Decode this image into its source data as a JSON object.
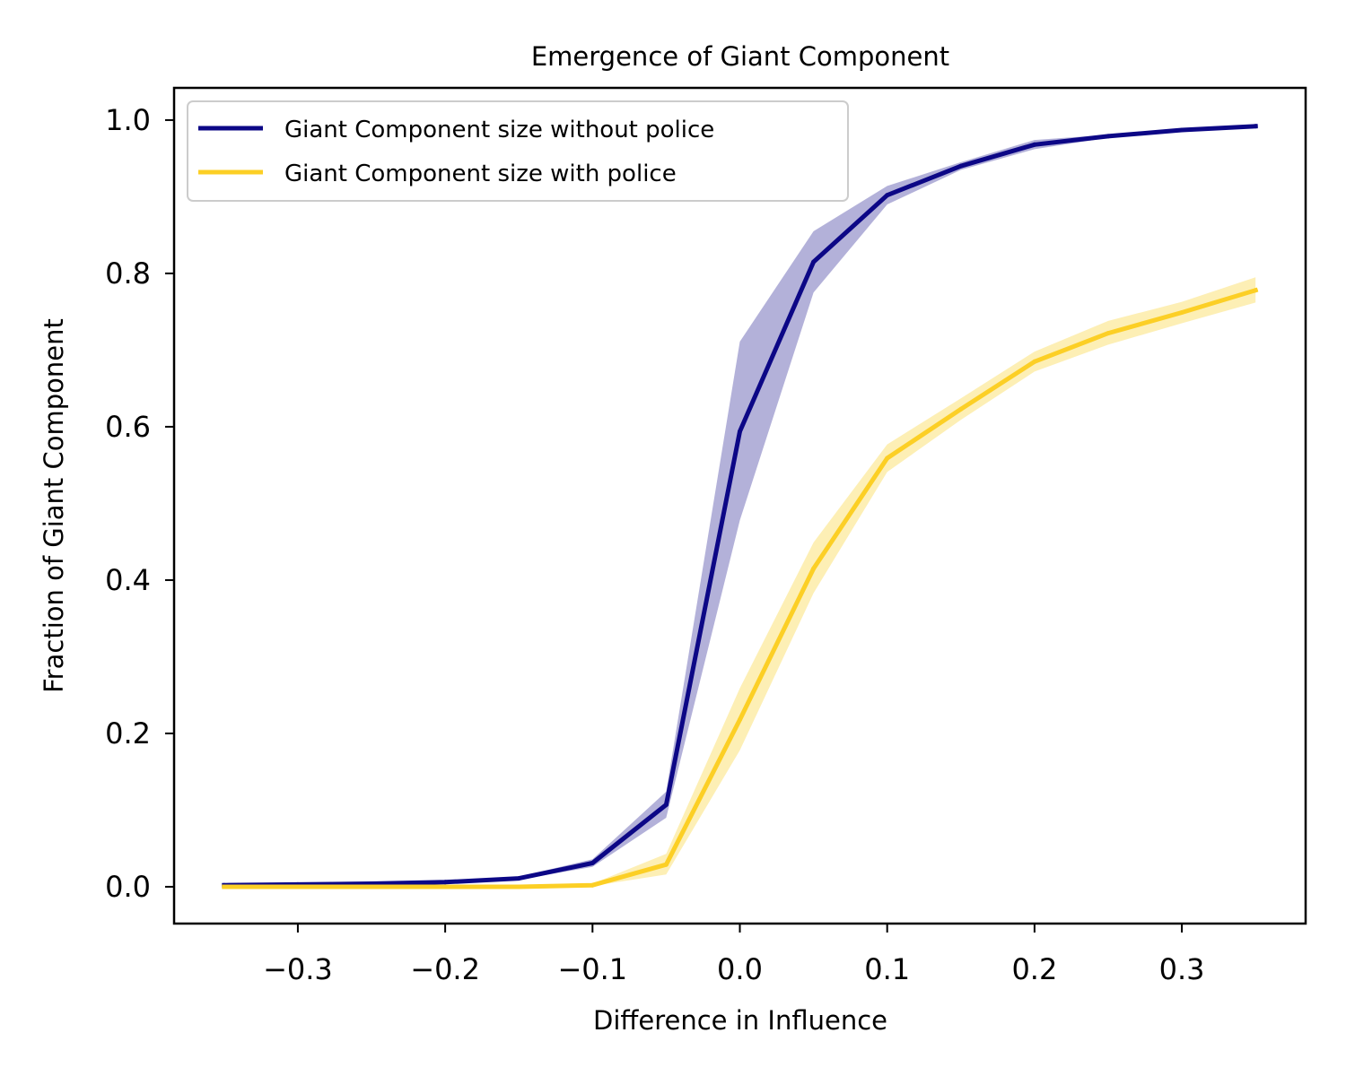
{
  "chart_data": {
    "type": "line",
    "title": "Emergence of Giant Component",
    "xlabel": "Difference in Influence",
    "ylabel": "Fraction of Giant Component",
    "xlim": [
      -0.384,
      0.384
    ],
    "ylim": [
      -0.048,
      1.042
    ],
    "xticks": [
      -0.3,
      -0.2,
      -0.1,
      0.0,
      0.1,
      0.2,
      0.3
    ],
    "xtick_labels": [
      "−0.3",
      "−0.2",
      "−0.1",
      "0.0",
      "0.1",
      "0.2",
      "0.3"
    ],
    "yticks": [
      0.0,
      0.2,
      0.4,
      0.6,
      0.8,
      1.0
    ],
    "ytick_labels": [
      "0.0",
      "0.2",
      "0.4",
      "0.6",
      "0.8",
      "1.0"
    ],
    "grid": false,
    "legend_position": "upper left",
    "x": [
      -0.35,
      -0.3,
      -0.25,
      -0.2,
      -0.15,
      -0.1,
      -0.05,
      0.0,
      0.05,
      0.1,
      0.15,
      0.2,
      0.25,
      0.3,
      0.35
    ],
    "series": [
      {
        "name": "Giant Component size without police",
        "color": "#0c0786",
        "band_color": "#b3b1d9",
        "values": [
          0.002,
          0.003,
          0.004,
          0.006,
          0.011,
          0.031,
          0.107,
          0.594,
          0.815,
          0.902,
          0.94,
          0.968,
          0.979,
          0.987,
          0.992
        ],
        "lower": [
          0.001,
          0.002,
          0.003,
          0.005,
          0.009,
          0.026,
          0.09,
          0.478,
          0.775,
          0.89,
          0.935,
          0.962,
          0.977,
          0.986,
          0.991
        ],
        "upper": [
          0.003,
          0.004,
          0.005,
          0.007,
          0.013,
          0.036,
          0.124,
          0.711,
          0.855,
          0.914,
          0.945,
          0.974,
          0.981,
          0.988,
          0.993
        ]
      },
      {
        "name": "Giant Component size with police",
        "color": "#fccf25",
        "band_color": "#fdefb5",
        "values": [
          0.0,
          0.0,
          0.0,
          0.0,
          0.0,
          0.002,
          0.029,
          0.218,
          0.415,
          0.559,
          0.623,
          0.685,
          0.722,
          0.749,
          0.778
        ],
        "lower": [
          0.0,
          0.0,
          0.0,
          0.0,
          0.0,
          0.001,
          0.016,
          0.178,
          0.383,
          0.541,
          0.609,
          0.672,
          0.707,
          0.735,
          0.762
        ],
        "upper": [
          0.0,
          0.0,
          0.0,
          0.0,
          0.001,
          0.004,
          0.043,
          0.259,
          0.449,
          0.577,
          0.637,
          0.698,
          0.738,
          0.763,
          0.795
        ]
      }
    ]
  }
}
